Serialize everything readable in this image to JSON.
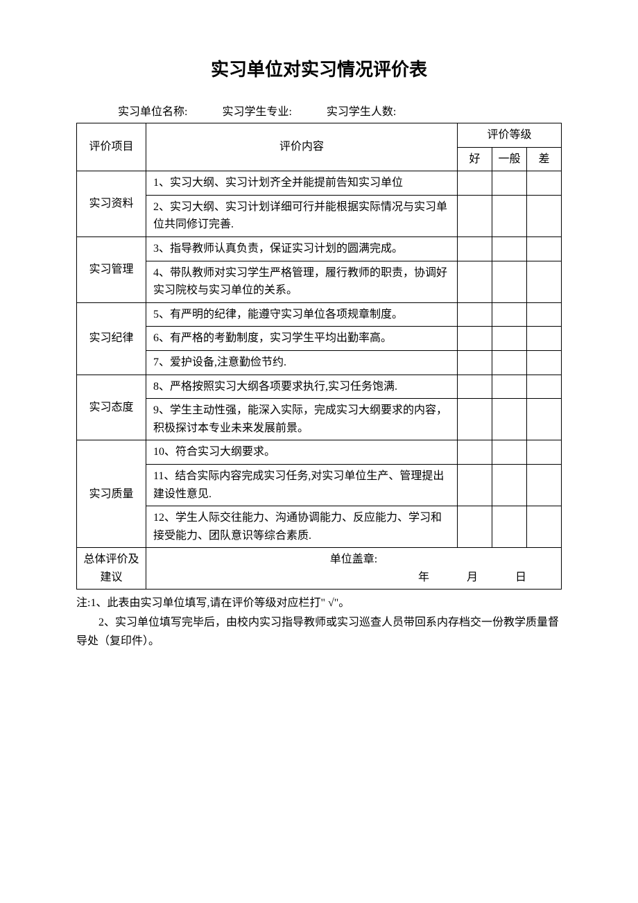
{
  "title": "实习单位对实习情况评价表",
  "header": {
    "unit_name_label": "实习单位名称:",
    "student_major_label": "实习学生专业:",
    "student_count_label": "实习学生人数:"
  },
  "table": {
    "col_category": "评价项目",
    "col_content": "评价内容",
    "col_rating": "评价等级",
    "rating_good": "好",
    "rating_normal": "一般",
    "rating_poor": "差",
    "categories": [
      {
        "name": "实习资料",
        "items": [
          "1、实习大纲、实习计划齐全并能提前告知实习单位",
          "2、实习大纲、实习计划详细可行并能根据实际情况与实习单位共同修订完善."
        ]
      },
      {
        "name": "实习管理",
        "items": [
          "3、指导教师认真负责，保证实习计划的圆满完成。",
          "4、带队教师对实习学生严格管理，履行教师的职责，协调好实习院校与实习单位的关系。"
        ]
      },
      {
        "name": "实习纪律",
        "items": [
          "5、有严明的纪律，能遵守实习单位各项规章制度。",
          "6、有严格的考勤制度，实习学生平均出勤率高。",
          "7、爱护设备,注意勤俭节约."
        ]
      },
      {
        "name": "实习态度",
        "items": [
          "8、严格按照实习大纲各项要求执行,实习任务饱满.",
          "9、学生主动性强，能深入实际，完成实习大纲要求的内容，积极探讨本专业未来发展前景。"
        ]
      },
      {
        "name": "实习质量",
        "items": [
          "10、符合实习大纲要求。",
          "11、结合实际内容完成实习任务,对实习单位生产、管理提出建设性意见.",
          "12、学生人际交往能力、沟通协调能力、反应能力、学习和接受能力、团队意识等综合素质."
        ]
      }
    ],
    "summary_label": "总体评价及建议",
    "stamp_label": "单位盖章:",
    "date_year": "年",
    "date_month": "月",
    "date_day": "日"
  },
  "notes": {
    "note1": "注:1、此表由实习单位填写,请在评价等级对应栏打\" √\"。",
    "note2": "2、实习单位填写完毕后，由校内实习指导教师或实习巡查人员带回系内存档交一份教学质量督导处（复印件）。"
  },
  "styling": {
    "background_color": "#ffffff",
    "text_color": "#000000",
    "border_color": "#000000",
    "title_fontsize": 26,
    "body_fontsize": 16,
    "font_family": "SimSun"
  }
}
